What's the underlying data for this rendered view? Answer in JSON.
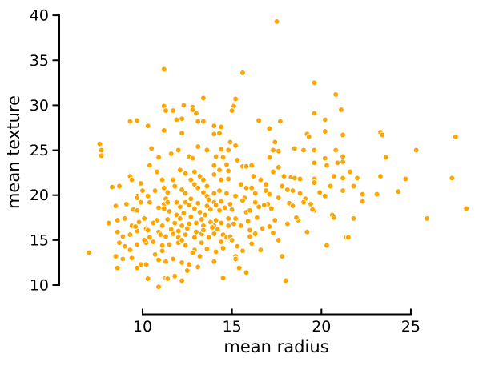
{
  "chart_data": {
    "type": "scatter",
    "title": "",
    "xlabel": "mean radius",
    "ylabel": "mean texture",
    "xlim": [
      7,
      28.5
    ],
    "ylim": [
      9.5,
      40
    ],
    "xticks": [
      10,
      15,
      20,
      25
    ],
    "yticks": [
      10,
      15,
      20,
      25,
      30,
      35,
      40
    ],
    "grid": false,
    "legend": false,
    "axis_style": "despined-trimmed-spines",
    "marker_color": "#FFA500",
    "marker_edge_color": "#FFFFFF",
    "points": [
      [
        11.2,
        34.0
      ],
      [
        13.4,
        30.8
      ],
      [
        12.3,
        30.0
      ],
      [
        11.2,
        29.9
      ],
      [
        12.8,
        29.8
      ],
      [
        17.5,
        39.3
      ],
      [
        15.6,
        33.6
      ],
      [
        19.6,
        32.5
      ],
      [
        20.8,
        31.2
      ],
      [
        15.2,
        30.7
      ],
      [
        15.1,
        29.9
      ],
      [
        11.3,
        29.4
      ],
      [
        11.7,
        29.4
      ],
      [
        12.8,
        29.5
      ],
      [
        13.0,
        29.1
      ],
      [
        9.3,
        28.2
      ],
      [
        9.7,
        28.3
      ],
      [
        10.3,
        27.7
      ],
      [
        11.9,
        28.4
      ],
      [
        12.2,
        28.5
      ],
      [
        13.1,
        28.2
      ],
      [
        13.4,
        28.2
      ],
      [
        11.2,
        27.2
      ],
      [
        12.2,
        26.9
      ],
      [
        7.6,
        25.7
      ],
      [
        7.7,
        25.0
      ],
      [
        7.7,
        24.4
      ],
      [
        10.5,
        25.2
      ],
      [
        11.6,
        24.6
      ],
      [
        12.0,
        25.0
      ],
      [
        10.9,
        24.2
      ],
      [
        12.6,
        24.3
      ],
      [
        12.8,
        24.1
      ],
      [
        13.1,
        25.4
      ],
      [
        13.6,
        25.0
      ],
      [
        10.4,
        23.3
      ],
      [
        10.8,
        22.6
      ],
      [
        12.1,
        22.8
      ],
      [
        12.4,
        22.4
      ],
      [
        12.9,
        22.6
      ],
      [
        13.2,
        22.1
      ],
      [
        13.4,
        21.7
      ],
      [
        9.3,
        22.1
      ],
      [
        9.4,
        21.7
      ],
      [
        8.3,
        20.9
      ],
      [
        8.7,
        21.0
      ],
      [
        9.9,
        21.3
      ],
      [
        10.0,
        20.5
      ],
      [
        9.7,
        19.9
      ],
      [
        10.7,
        20.5
      ],
      [
        11.1,
        21.7
      ],
      [
        11.2,
        20.8
      ],
      [
        11.4,
        20.3
      ],
      [
        11.7,
        21.7
      ],
      [
        11.8,
        21.0
      ],
      [
        12.2,
        20.6
      ],
      [
        12.4,
        20.2
      ],
      [
        12.7,
        21.7
      ],
      [
        12.9,
        21.2
      ],
      [
        13.1,
        20.8
      ],
      [
        13.4,
        20.3
      ],
      [
        13.6,
        21.0
      ],
      [
        9.7,
        19.7
      ],
      [
        10.3,
        19.9
      ],
      [
        11.3,
        19.6
      ],
      [
        12.7,
        19.6
      ],
      [
        13.6,
        19.9
      ],
      [
        15.0,
        29.4
      ],
      [
        19.6,
        29.1
      ],
      [
        20.2,
        28.4
      ],
      [
        21.1,
        29.5
      ],
      [
        14.0,
        27.7
      ],
      [
        14.4,
        27.6
      ],
      [
        14.0,
        26.8
      ],
      [
        14.3,
        26.9
      ],
      [
        16.5,
        28.3
      ],
      [
        17.7,
        28.2
      ],
      [
        17.1,
        27.4
      ],
      [
        19.2,
        26.8
      ],
      [
        19.3,
        26.5
      ],
      [
        20.2,
        27.1
      ],
      [
        21.2,
        26.7
      ],
      [
        14.9,
        25.9
      ],
      [
        15.2,
        25.5
      ],
      [
        14.4,
        25.1
      ],
      [
        14.8,
        25.0
      ],
      [
        14.1,
        24.3
      ],
      [
        17.4,
        25.9
      ],
      [
        17.3,
        25.0
      ],
      [
        17.1,
        24.2
      ],
      [
        17.6,
        24.9
      ],
      [
        18.5,
        25.2
      ],
      [
        19.0,
        25.0
      ],
      [
        19.6,
        25.0
      ],
      [
        20.8,
        25.0
      ],
      [
        21.2,
        24.3
      ],
      [
        14.5,
        24.2
      ],
      [
        14.7,
        23.4
      ],
      [
        14.0,
        23.3
      ],
      [
        14.3,
        22.8
      ],
      [
        14.8,
        22.7
      ],
      [
        15.3,
        23.9
      ],
      [
        15.6,
        23.2
      ],
      [
        15.8,
        23.2
      ],
      [
        16.1,
        23.3
      ],
      [
        19.6,
        23.6
      ],
      [
        20.2,
        24.1
      ],
      [
        20.3,
        23.3
      ],
      [
        20.9,
        23.6
      ],
      [
        21.2,
        23.7
      ],
      [
        17.3,
        22.6
      ],
      [
        17.6,
        23.1
      ],
      [
        16.2,
        22.1
      ],
      [
        16.6,
        21.7
      ],
      [
        16.9,
        21.2
      ],
      [
        15.5,
        21.2
      ],
      [
        15.8,
        20.8
      ],
      [
        14.8,
        21.8
      ],
      [
        14.4,
        21.7
      ],
      [
        14.0,
        22.3
      ],
      [
        17.9,
        22.1
      ],
      [
        18.3,
        22.0
      ],
      [
        18.5,
        21.9
      ],
      [
        18.8,
        21.8
      ],
      [
        19.6,
        21.8
      ],
      [
        19.6,
        21.4
      ],
      [
        20.5,
        21.0
      ],
      [
        20.7,
        22.1
      ],
      [
        21.2,
        21.9
      ],
      [
        16.1,
        20.8
      ],
      [
        16.3,
        20.2
      ],
      [
        16.9,
        20.5
      ],
      [
        17.1,
        20.1
      ],
      [
        17.8,
        21.0
      ],
      [
        18.1,
        20.6
      ],
      [
        18.4,
        20.5
      ],
      [
        18.8,
        20.2
      ],
      [
        14.3,
        20.5
      ],
      [
        14.7,
        20.2
      ],
      [
        14.0,
        20.2
      ],
      [
        15.2,
        19.9
      ],
      [
        19.9,
        20.3
      ],
      [
        20.2,
        19.9
      ],
      [
        21.2,
        20.5
      ],
      [
        15.7,
        19.7
      ],
      [
        17.6,
        19.7
      ],
      [
        19.1,
        19.6
      ],
      [
        23.3,
        27.0
      ],
      [
        23.4,
        26.7
      ],
      [
        25.3,
        25.0
      ],
      [
        23.6,
        24.2
      ],
      [
        21.6,
        22.6
      ],
      [
        22.0,
        21.9
      ],
      [
        21.8,
        21.0
      ],
      [
        23.3,
        22.1
      ],
      [
        24.7,
        21.8
      ],
      [
        22.3,
        20.1
      ],
      [
        23.1,
        20.1
      ],
      [
        24.3,
        20.4
      ],
      [
        8.5,
        18.8
      ],
      [
        9.1,
        19.0
      ],
      [
        9.5,
        18.4
      ],
      [
        9.7,
        18.3
      ],
      [
        9.9,
        19.2
      ],
      [
        10.4,
        19.2
      ],
      [
        10.9,
        18.6
      ],
      [
        11.2,
        19.0
      ],
      [
        11.4,
        19.2
      ],
      [
        11.9,
        19.2
      ],
      [
        12.1,
        18.7
      ],
      [
        12.4,
        19.2
      ],
      [
        12.9,
        18.5
      ],
      [
        13.1,
        19.1
      ],
      [
        13.6,
        18.8
      ],
      [
        8.1,
        16.9
      ],
      [
        8.6,
        17.2
      ],
      [
        9.0,
        17.4
      ],
      [
        9.4,
        16.6
      ],
      [
        9.8,
        17.0
      ],
      [
        10.1,
        17.4
      ],
      [
        10.8,
        17.2
      ],
      [
        11.1,
        16.6
      ],
      [
        11.4,
        17.3
      ],
      [
        11.8,
        16.9
      ],
      [
        12.2,
        16.6
      ],
      [
        12.6,
        16.8
      ],
      [
        13.0,
        16.9
      ],
      [
        13.4,
        16.6
      ],
      [
        13.8,
        17.0
      ],
      [
        8.6,
        15.9
      ],
      [
        8.9,
        15.4
      ],
      [
        9.3,
        15.6
      ],
      [
        9.7,
        16.0
      ],
      [
        10.2,
        16.3
      ],
      [
        10.4,
        15.3
      ],
      [
        10.9,
        15.9
      ],
      [
        11.3,
        15.4
      ],
      [
        11.7,
        15.7
      ],
      [
        12.0,
        15.3
      ],
      [
        12.4,
        15.6
      ],
      [
        12.9,
        15.3
      ],
      [
        13.3,
        15.7
      ],
      [
        13.7,
        15.3
      ],
      [
        8.7,
        14.7
      ],
      [
        9.0,
        14.3
      ],
      [
        9.3,
        13.9
      ],
      [
        8.5,
        13.2
      ],
      [
        8.9,
        12.9
      ],
      [
        7.0,
        13.6
      ],
      [
        9.7,
        14.5
      ],
      [
        10.2,
        14.7
      ],
      [
        10.6,
        14.8
      ],
      [
        11.1,
        14.4
      ],
      [
        11.5,
        14.5
      ],
      [
        12.0,
        14.7
      ],
      [
        12.4,
        14.4
      ],
      [
        12.9,
        13.9
      ],
      [
        13.3,
        14.7
      ],
      [
        9.4,
        13.0
      ],
      [
        9.9,
        12.3
      ],
      [
        10.2,
        12.3
      ],
      [
        10.9,
        12.8
      ],
      [
        11.3,
        12.6
      ],
      [
        11.7,
        12.9
      ],
      [
        12.2,
        12.5
      ],
      [
        12.6,
        12.3
      ],
      [
        8.6,
        11.9
      ],
      [
        9.7,
        11.9
      ],
      [
        10.3,
        10.7
      ],
      [
        11.3,
        10.8
      ],
      [
        11.8,
        11.0
      ],
      [
        12.2,
        10.5
      ],
      [
        10.9,
        9.8
      ],
      [
        11.4,
        10.7
      ],
      [
        14.0,
        19.2
      ],
      [
        14.4,
        19.3
      ],
      [
        14.3,
        18.3
      ],
      [
        14.9,
        19.0
      ],
      [
        14.8,
        17.4
      ],
      [
        15.2,
        17.4
      ],
      [
        14.1,
        17.2
      ],
      [
        14.4,
        16.9
      ],
      [
        14.0,
        16.6
      ],
      [
        14.8,
        16.6
      ],
      [
        15.1,
        16.8
      ],
      [
        15.8,
        18.1
      ],
      [
        16.0,
        18.3
      ],
      [
        16.5,
        18.7
      ],
      [
        16.3,
        19.2
      ],
      [
        17.0,
        19.0
      ],
      [
        18.2,
        19.1
      ],
      [
        18.4,
        18.8
      ],
      [
        19.0,
        19.2
      ],
      [
        19.4,
        19.0
      ],
      [
        19.6,
        18.3
      ],
      [
        19.5,
        18.4
      ],
      [
        20.6,
        17.8
      ],
      [
        20.7,
        17.5
      ],
      [
        17.4,
        17.2
      ],
      [
        17.1,
        16.5
      ],
      [
        18.1,
        16.8
      ],
      [
        18.7,
        17.2
      ],
      [
        18.6,
        17.5
      ],
      [
        19.2,
        15.9
      ],
      [
        16.0,
        16.1
      ],
      [
        16.3,
        15.7
      ],
      [
        16.0,
        15.4
      ],
      [
        14.0,
        15.7
      ],
      [
        14.5,
        15.6
      ],
      [
        14.7,
        15.3
      ],
      [
        14.4,
        14.8
      ],
      [
        14.9,
        15.4
      ],
      [
        15.0,
        15.0
      ],
      [
        17.6,
        15.0
      ],
      [
        21.4,
        15.3
      ],
      [
        14.5,
        14.1
      ],
      [
        14.1,
        13.7
      ],
      [
        15.3,
        14.3
      ],
      [
        15.6,
        13.8
      ],
      [
        20.3,
        14.4
      ],
      [
        15.2,
        13.2
      ],
      [
        15.2,
        12.9
      ],
      [
        17.8,
        13.2
      ],
      [
        15.4,
        11.9
      ],
      [
        15.8,
        11.4
      ],
      [
        14.5,
        10.8
      ],
      [
        18.0,
        10.5
      ],
      [
        22.3,
        19.3
      ],
      [
        21.8,
        17.4
      ],
      [
        21.5,
        15.3
      ],
      [
        25.9,
        17.4
      ],
      [
        28.1,
        18.5
      ],
      [
        27.5,
        26.5
      ],
      [
        27.3,
        21.9
      ],
      [
        11.5,
        18.2
      ],
      [
        11.9,
        17.8
      ],
      [
        12.3,
        18.0
      ],
      [
        12.7,
        17.6
      ],
      [
        13.2,
        18.1
      ],
      [
        13.5,
        17.8
      ],
      [
        12.1,
        17.4
      ],
      [
        11.6,
        16.2
      ],
      [
        12.0,
        16.0
      ],
      [
        12.5,
        16.3
      ],
      [
        13.0,
        15.9
      ],
      [
        13.4,
        16.1
      ],
      [
        10.6,
        16.9
      ],
      [
        10.3,
        16.1
      ],
      [
        11.0,
        15.6
      ],
      [
        11.2,
        18.5
      ],
      [
        12.6,
        18.9
      ],
      [
        13.8,
        18.4
      ],
      [
        13.9,
        16.4
      ],
      [
        14.2,
        16.2
      ],
      [
        14.6,
        18.6
      ],
      [
        15.0,
        18.4
      ],
      [
        13.7,
        19.5
      ],
      [
        14.1,
        18.9
      ],
      [
        12.8,
        13.6
      ],
      [
        13.2,
        13.2
      ],
      [
        13.6,
        14.0
      ],
      [
        14.0,
        12.6
      ],
      [
        13.1,
        12.0
      ],
      [
        12.5,
        11.6
      ],
      [
        11.1,
        13.8
      ],
      [
        10.7,
        13.4
      ],
      [
        10.1,
        15.0
      ],
      [
        9.6,
        16.5
      ],
      [
        15.5,
        16.6
      ],
      [
        15.9,
        17.1
      ],
      [
        16.4,
        17.5
      ],
      [
        16.8,
        18.9
      ],
      [
        17.2,
        18.5
      ],
      [
        15.6,
        19.4
      ],
      [
        16.7,
        16.3
      ],
      [
        17.3,
        15.8
      ],
      [
        16.1,
        14.6
      ],
      [
        16.6,
        13.9
      ],
      [
        13.3,
        17.3
      ],
      [
        12.2,
        15.0
      ]
    ]
  }
}
